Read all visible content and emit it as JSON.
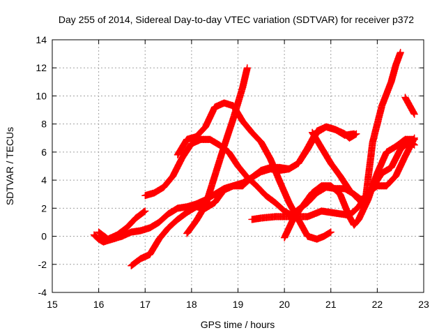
{
  "chart_data": {
    "type": "scatter",
    "title": "Day 255 of 2014, Sidereal Day-to-day VTEC variation (SDTVAR) for receiver p372",
    "xlabel": "GPS time / hours",
    "ylabel": "SDTVAR / TECUs",
    "xlim": [
      15,
      23
    ],
    "ylim": [
      -4,
      14
    ],
    "x_ticks": [
      "15",
      "16",
      "17",
      "18",
      "19",
      "20",
      "21",
      "22",
      "23"
    ],
    "y_ticks": [
      "-4",
      "-2",
      "0",
      "2",
      "4",
      "6",
      "8",
      "10",
      "12",
      "14"
    ],
    "grid": true,
    "legend": "none",
    "marker": "plus",
    "color": "#ff0000",
    "series": [
      {
        "points": [
          [
            15.9,
            0.1
          ],
          [
            16.0,
            -0.2
          ],
          [
            16.1,
            -0.4
          ],
          [
            16.3,
            -0.2
          ],
          [
            16.5,
            0.0
          ],
          [
            16.7,
            0.3
          ],
          [
            16.9,
            0.4
          ],
          [
            17.1,
            0.6
          ],
          [
            17.3,
            1.0
          ],
          [
            17.5,
            1.6
          ],
          [
            17.7,
            2.0
          ],
          [
            17.9,
            2.1
          ],
          [
            18.1,
            2.3
          ],
          [
            18.3,
            2.6
          ],
          [
            18.5,
            3.0
          ],
          [
            18.7,
            3.4
          ],
          [
            18.9,
            3.6
          ],
          [
            19.1,
            3.6
          ],
          [
            19.3,
            4.2
          ],
          [
            19.5,
            4.6
          ],
          [
            19.7,
            4.8
          ],
          [
            19.9,
            4.7
          ],
          [
            20.1,
            4.8
          ],
          [
            20.3,
            5.2
          ],
          [
            20.5,
            6.2
          ],
          [
            20.7,
            7.4
          ],
          [
            20.9,
            7.8
          ],
          [
            21.1,
            7.6
          ],
          [
            21.3,
            7.3
          ],
          [
            21.4,
            7.0
          ],
          [
            21.55,
            7.3
          ]
        ]
      },
      {
        "points": [
          [
            16.0,
            0.3
          ],
          [
            16.2,
            -0.2
          ],
          [
            16.4,
            0.1
          ],
          [
            16.6,
            0.6
          ],
          [
            16.8,
            1.3
          ],
          [
            17.0,
            1.8
          ]
        ]
      },
      {
        "points": [
          [
            16.7,
            -2.1
          ],
          [
            16.9,
            -1.6
          ],
          [
            17.1,
            -1.3
          ],
          [
            17.3,
            -0.2
          ],
          [
            17.5,
            0.6
          ],
          [
            17.7,
            1.2
          ],
          [
            17.9,
            1.7
          ],
          [
            18.1,
            2.1
          ],
          [
            18.3,
            2.0
          ],
          [
            18.5,
            2.4
          ],
          [
            18.7,
            3.3
          ],
          [
            18.9,
            3.6
          ],
          [
            19.1,
            3.8
          ],
          [
            19.3,
            4.2
          ],
          [
            19.5,
            4.7
          ],
          [
            19.7,
            4.9
          ],
          [
            19.9,
            4.9
          ],
          [
            20.1,
            4.8
          ],
          [
            20.3,
            5.2
          ],
          [
            20.5,
            6.3
          ],
          [
            20.7,
            7.5
          ],
          [
            20.9,
            7.8
          ],
          [
            21.1,
            7.6
          ],
          [
            21.3,
            7.2
          ],
          [
            21.5,
            7.3
          ]
        ]
      },
      {
        "points": [
          [
            17.0,
            2.9
          ],
          [
            17.2,
            3.1
          ],
          [
            17.4,
            3.5
          ],
          [
            17.6,
            4.3
          ],
          [
            17.8,
            5.6
          ],
          [
            18.0,
            6.6
          ],
          [
            18.2,
            6.9
          ],
          [
            18.4,
            6.9
          ],
          [
            18.6,
            6.5
          ],
          [
            18.8,
            6.0
          ],
          [
            19.0,
            5.0
          ],
          [
            19.2,
            4.2
          ],
          [
            19.4,
            3.6
          ],
          [
            19.6,
            2.9
          ],
          [
            19.8,
            2.4
          ],
          [
            20.0,
            1.8
          ],
          [
            20.2,
            1.4
          ],
          [
            20.5,
            1.4
          ],
          [
            20.8,
            1.8
          ],
          [
            21.0,
            1.7
          ],
          [
            21.2,
            1.6
          ],
          [
            21.4,
            1.5
          ],
          [
            21.6,
            2.1
          ],
          [
            21.8,
            3.1
          ],
          [
            22.0,
            3.6
          ],
          [
            22.2,
            3.6
          ],
          [
            22.4,
            4.3
          ],
          [
            22.6,
            5.7
          ],
          [
            22.8,
            7.0
          ]
        ]
      },
      {
        "points": [
          [
            17.7,
            5.8
          ],
          [
            17.9,
            6.9
          ],
          [
            18.1,
            7.1
          ],
          [
            18.3,
            7.8
          ],
          [
            18.5,
            9.2
          ],
          [
            18.7,
            9.5
          ],
          [
            18.9,
            9.3
          ],
          [
            19.1,
            8.2
          ],
          [
            19.3,
            7.4
          ],
          [
            19.5,
            6.7
          ],
          [
            19.7,
            5.5
          ],
          [
            19.9,
            3.9
          ],
          [
            20.1,
            2.4
          ],
          [
            20.3,
            1.2
          ],
          [
            20.5,
            0.0
          ],
          [
            20.7,
            -0.2
          ],
          [
            20.85,
            0.0
          ],
          [
            21.0,
            0.3
          ]
        ]
      },
      {
        "points": [
          [
            17.9,
            0.2
          ],
          [
            18.1,
            1.1
          ],
          [
            18.3,
            2.2
          ],
          [
            18.5,
            4.3
          ],
          [
            18.7,
            6.4
          ],
          [
            18.9,
            8.4
          ],
          [
            19.1,
            10.6
          ],
          [
            19.2,
            12.0
          ]
        ]
      },
      {
        "points": [
          [
            19.3,
            1.2
          ],
          [
            19.5,
            1.3
          ],
          [
            19.8,
            1.4
          ],
          [
            20.1,
            1.4
          ],
          [
            20.3,
            1.9
          ],
          [
            20.5,
            2.4
          ],
          [
            20.7,
            3.1
          ],
          [
            20.9,
            3.5
          ],
          [
            21.1,
            3.4
          ],
          [
            21.3,
            3.4
          ],
          [
            21.5,
            3.0
          ],
          [
            21.7,
            2.5
          ],
          [
            21.9,
            3.5
          ],
          [
            22.1,
            4.5
          ],
          [
            22.3,
            4.9
          ],
          [
            22.5,
            6.2
          ],
          [
            22.7,
            6.8
          ],
          [
            22.8,
            6.5
          ]
        ]
      },
      {
        "points": [
          [
            20.0,
            -0.1
          ],
          [
            20.2,
            1.3
          ],
          [
            20.4,
            2.2
          ],
          [
            20.6,
            3.1
          ],
          [
            20.8,
            3.6
          ],
          [
            21.0,
            3.6
          ],
          [
            21.2,
            3.0
          ],
          [
            21.4,
            1.4
          ],
          [
            21.5,
            0.8
          ],
          [
            21.6,
            1.2
          ],
          [
            21.8,
            2.6
          ],
          [
            22.0,
            4.5
          ],
          [
            22.2,
            6.0
          ],
          [
            22.4,
            6.4
          ],
          [
            22.6,
            6.9
          ],
          [
            22.8,
            6.9
          ]
        ]
      },
      {
        "points": [
          [
            20.6,
            7.4
          ],
          [
            20.8,
            6.3
          ],
          [
            21.0,
            5.2
          ],
          [
            21.2,
            4.3
          ],
          [
            21.4,
            3.3
          ],
          [
            21.6,
            2.6
          ],
          [
            21.75,
            2.7
          ],
          [
            21.9,
            6.7
          ],
          [
            22.1,
            9.3
          ],
          [
            22.3,
            11.0
          ],
          [
            22.4,
            12.2
          ],
          [
            22.5,
            13.1
          ]
        ]
      },
      {
        "points": [
          [
            22.6,
            9.9
          ],
          [
            22.7,
            9.3
          ],
          [
            22.8,
            8.7
          ]
        ]
      }
    ]
  }
}
